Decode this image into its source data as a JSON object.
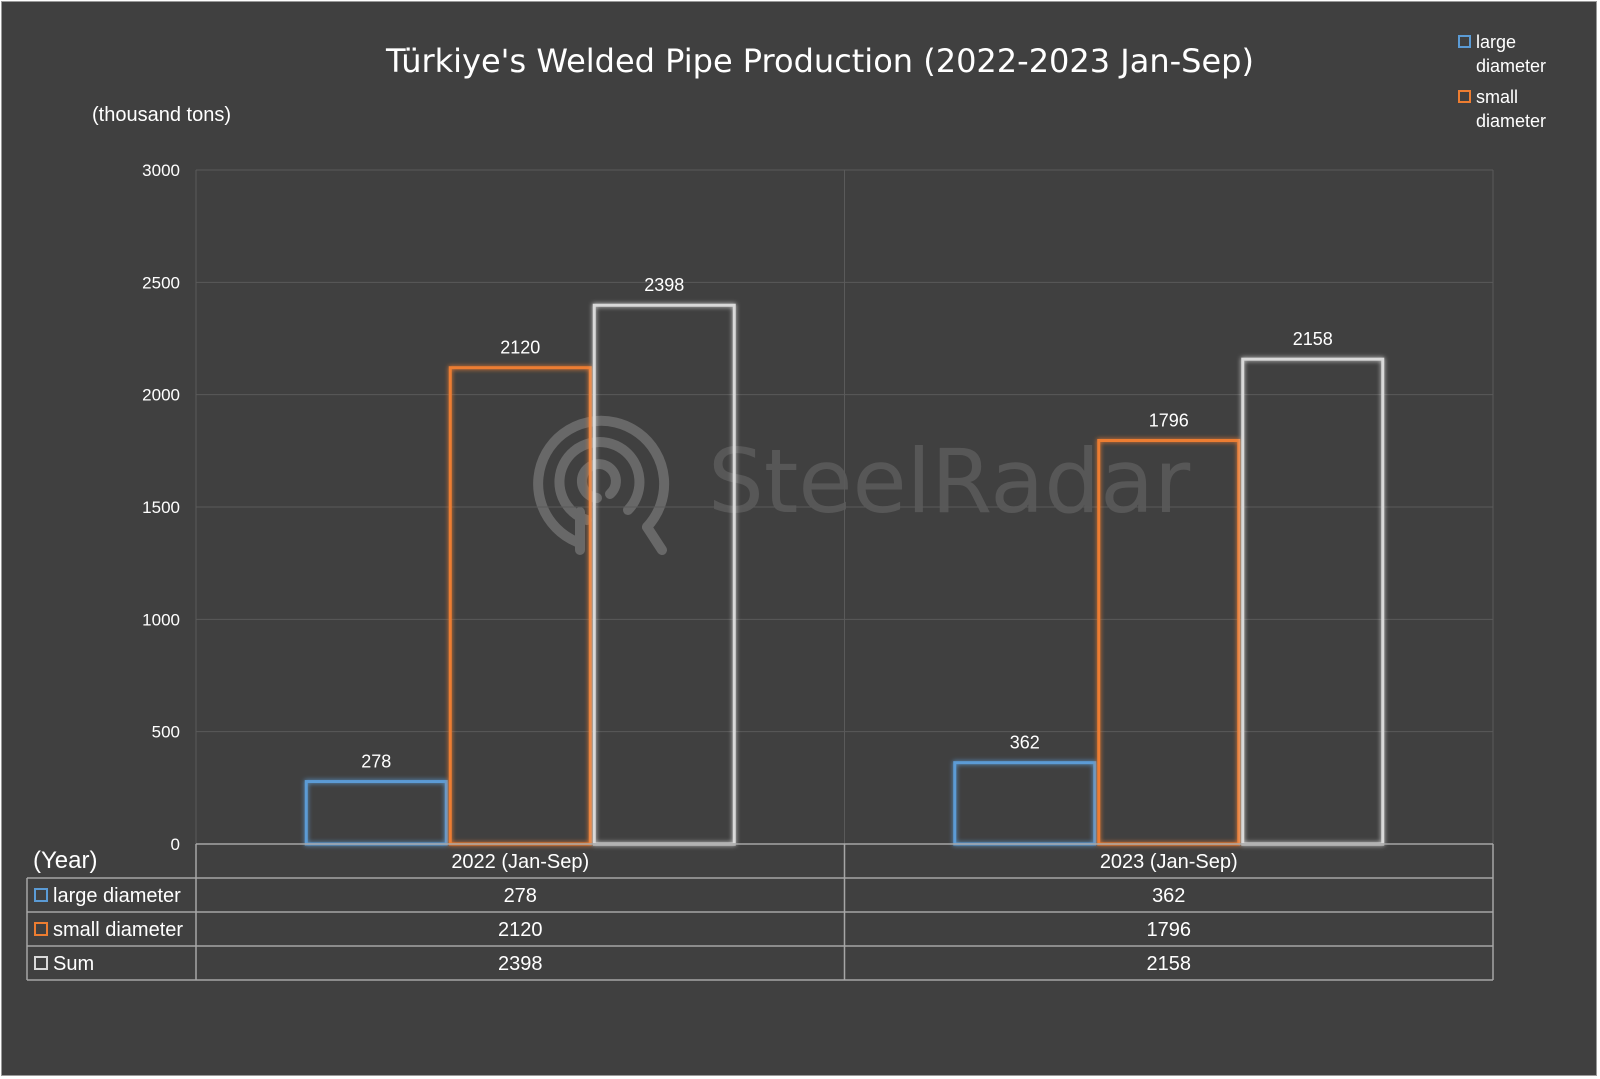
{
  "chart_data": {
    "type": "bar",
    "title": "Türkiye's Welded Pipe Production (2022-2023 Jan-Sep)",
    "ylabel": "(thousand tons)",
    "xlabel": "(Year)",
    "categories": [
      "2022 (Jan-Sep)",
      "2023 (Jan-Sep)"
    ],
    "ylim": [
      0,
      3000
    ],
    "yticks": [
      "0",
      "500",
      "1000",
      "1500",
      "2000",
      "2500",
      "3000"
    ],
    "grid": true,
    "legend_position": "top-right",
    "data_table": true,
    "series": [
      {
        "name": "large diameter",
        "values": [
          278,
          362
        ],
        "color": "#5b9bd5"
      },
      {
        "name": "small diameter",
        "values": [
          2120,
          1796
        ],
        "color": "#ed7d31"
      },
      {
        "name": "Sum",
        "values": [
          2398,
          2158
        ],
        "color": "#d9d9d9"
      }
    ],
    "legend": [
      {
        "line1": "large",
        "line2": "diameter",
        "color": "#5b9bd5"
      },
      {
        "line1": "small",
        "line2": "diameter",
        "color": "#ed7d31"
      }
    ],
    "watermark": "SteelRadar",
    "colors": {
      "background": "#404040",
      "grid": "#5a5a5a",
      "table_border": "#a6a6a6"
    }
  }
}
